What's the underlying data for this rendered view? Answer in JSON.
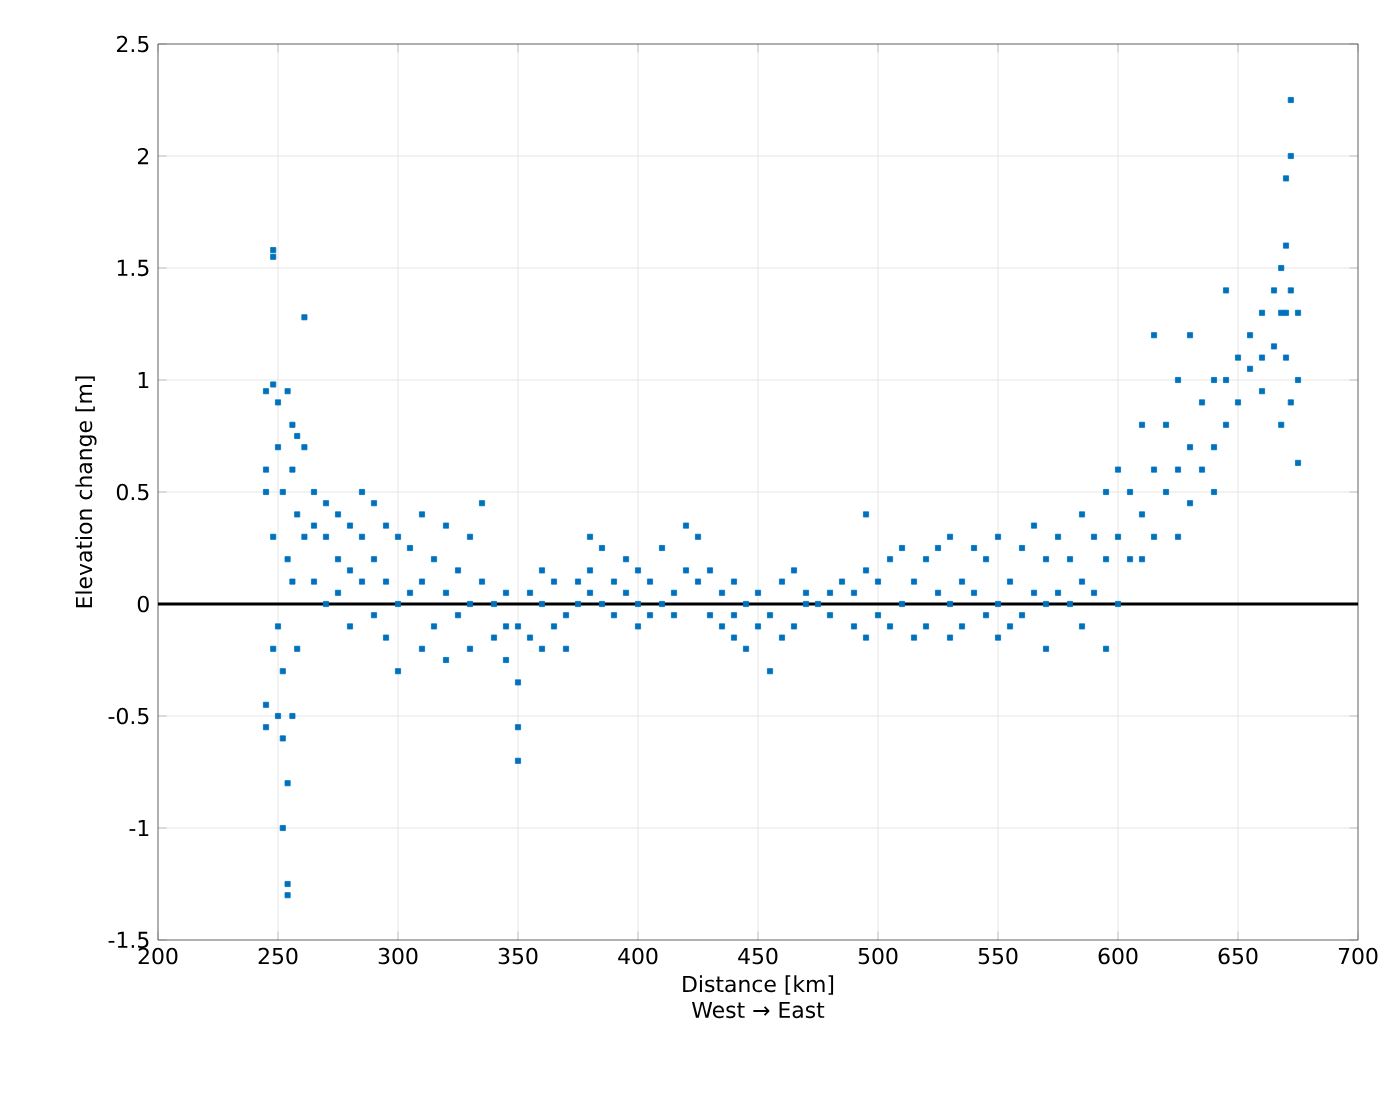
{
  "chart_data": {
    "type": "scatter",
    "xlabel": "Distance [km]",
    "ylabel": "Elevation change [m]",
    "annotations": [
      "West → East"
    ],
    "xlim": [
      200,
      700
    ],
    "xticks": [
      200,
      250,
      300,
      350,
      400,
      450,
      500,
      550,
      600,
      650,
      700
    ],
    "ylim": [
      -1.5,
      2.5
    ],
    "yticks": [
      -1.5,
      -1,
      -0.5,
      0,
      0.5,
      1,
      1.5,
      2,
      2.5
    ],
    "grid": true,
    "marker": "square",
    "ref_lines": [
      {
        "axis": "y",
        "value": 0,
        "color": "#000000"
      }
    ],
    "series": [
      {
        "color": "#0072bd",
        "x": [
          245,
          245,
          245,
          245,
          245,
          248,
          248,
          248,
          248,
          248,
          250,
          250,
          250,
          250,
          252,
          252,
          252,
          252,
          254,
          254,
          254,
          254,
          254,
          256,
          256,
          256,
          256,
          258,
          258,
          258,
          261,
          261,
          261,
          265,
          265,
          265,
          270,
          270,
          270,
          275,
          275,
          275,
          280,
          280,
          280,
          285,
          285,
          285,
          290,
          290,
          290,
          295,
          295,
          295,
          300,
          300,
          300,
          305,
          305,
          310,
          310,
          310,
          315,
          315,
          320,
          320,
          320,
          325,
          325,
          330,
          330,
          330,
          335,
          335,
          340,
          340,
          345,
          345,
          345,
          350,
          350,
          350,
          350,
          355,
          355,
          360,
          360,
          360,
          365,
          365,
          370,
          370,
          375,
          375,
          380,
          380,
          380,
          385,
          385,
          390,
          390,
          395,
          395,
          400,
          400,
          400,
          405,
          405,
          410,
          410,
          415,
          415,
          420,
          420,
          425,
          425,
          430,
          430,
          435,
          435,
          440,
          440,
          440,
          445,
          445,
          450,
          450,
          455,
          455,
          460,
          460,
          465,
          465,
          470,
          470,
          475,
          480,
          480,
          485,
          490,
          490,
          495,
          495,
          495,
          500,
          500,
          505,
          505,
          510,
          510,
          515,
          515,
          520,
          520,
          525,
          525,
          530,
          530,
          530,
          535,
          535,
          540,
          540,
          545,
          545,
          550,
          550,
          550,
          555,
          555,
          560,
          560,
          565,
          565,
          570,
          570,
          570,
          575,
          575,
          580,
          580,
          585,
          585,
          585,
          590,
          590,
          595,
          595,
          595,
          600,
          600,
          600,
          605,
          605,
          610,
          610,
          610,
          615,
          615,
          615,
          620,
          620,
          625,
          625,
          625,
          630,
          630,
          630,
          635,
          635,
          640,
          640,
          640,
          645,
          645,
          645,
          650,
          650,
          655,
          655,
          660,
          660,
          660,
          665,
          665,
          668,
          668,
          668,
          670,
          670,
          670,
          670,
          672,
          672,
          672,
          672,
          675,
          675,
          675
        ],
        "values": [
          0.6,
          0.95,
          -0.55,
          -0.45,
          0.5,
          1.58,
          1.55,
          0.98,
          0.3,
          -0.2,
          0.9,
          0.7,
          -0.1,
          -0.5,
          0.5,
          -0.3,
          -0.6,
          -1.0,
          -1.3,
          -1.25,
          0.2,
          0.95,
          -0.8,
          0.8,
          0.6,
          0.1,
          -0.5,
          0.75,
          0.4,
          -0.2,
          1.28,
          0.7,
          0.3,
          0.35,
          0.5,
          0.1,
          0.3,
          0.45,
          0.0,
          0.2,
          0.4,
          0.05,
          0.35,
          0.15,
          -0.1,
          0.5,
          0.3,
          0.1,
          0.45,
          0.2,
          -0.05,
          0.35,
          0.1,
          -0.15,
          0.3,
          0.0,
          -0.3,
          0.25,
          0.05,
          0.4,
          0.1,
          -0.2,
          0.2,
          -0.1,
          0.35,
          0.05,
          -0.25,
          0.15,
          -0.05,
          0.3,
          0.0,
          -0.2,
          0.45,
          0.1,
          0.0,
          -0.15,
          -0.1,
          -0.25,
          0.05,
          -0.35,
          -0.55,
          -0.7,
          -0.1,
          -0.15,
          0.05,
          -0.2,
          0.0,
          0.15,
          -0.1,
          0.1,
          -0.05,
          -0.2,
          0.1,
          0.0,
          0.3,
          0.15,
          0.05,
          0.25,
          0.0,
          0.1,
          -0.05,
          0.2,
          0.05,
          0.15,
          0.0,
          -0.1,
          0.1,
          -0.05,
          0.25,
          0.0,
          0.05,
          -0.05,
          0.35,
          0.15,
          0.3,
          0.1,
          0.15,
          -0.05,
          0.05,
          -0.1,
          -0.05,
          -0.15,
          0.1,
          0.0,
          -0.2,
          -0.1,
          0.05,
          -0.3,
          -0.05,
          0.1,
          -0.15,
          0.15,
          -0.1,
          0.05,
          0.0,
          0.0,
          0.05,
          -0.05,
          0.1,
          0.05,
          -0.1,
          0.4,
          0.15,
          -0.15,
          0.1,
          -0.05,
          0.2,
          -0.1,
          0.25,
          0.0,
          0.1,
          -0.15,
          0.2,
          -0.1,
          0.25,
          0.05,
          0.3,
          0.0,
          -0.15,
          0.1,
          -0.1,
          0.25,
          0.05,
          0.2,
          -0.05,
          0.3,
          0.0,
          -0.15,
          0.1,
          -0.1,
          0.25,
          -0.05,
          0.35,
          0.05,
          0.2,
          0.0,
          -0.2,
          0.3,
          0.05,
          0.2,
          0.0,
          0.4,
          0.1,
          -0.1,
          0.3,
          0.05,
          0.5,
          0.2,
          -0.2,
          0.6,
          0.3,
          0.0,
          0.5,
          0.2,
          0.8,
          0.4,
          0.2,
          1.2,
          0.6,
          0.3,
          0.8,
          0.5,
          1.0,
          0.6,
          0.3,
          1.2,
          0.7,
          0.45,
          0.9,
          0.6,
          1.0,
          0.7,
          0.5,
          1.4,
          1.0,
          0.8,
          1.1,
          0.9,
          1.2,
          1.05,
          1.3,
          1.1,
          0.95,
          1.4,
          1.15,
          1.5,
          1.3,
          0.8,
          1.9,
          1.6,
          1.3,
          1.1,
          2.25,
          2.0,
          1.4,
          0.9,
          1.3,
          0.63,
          1.0
        ]
      }
    ]
  }
}
